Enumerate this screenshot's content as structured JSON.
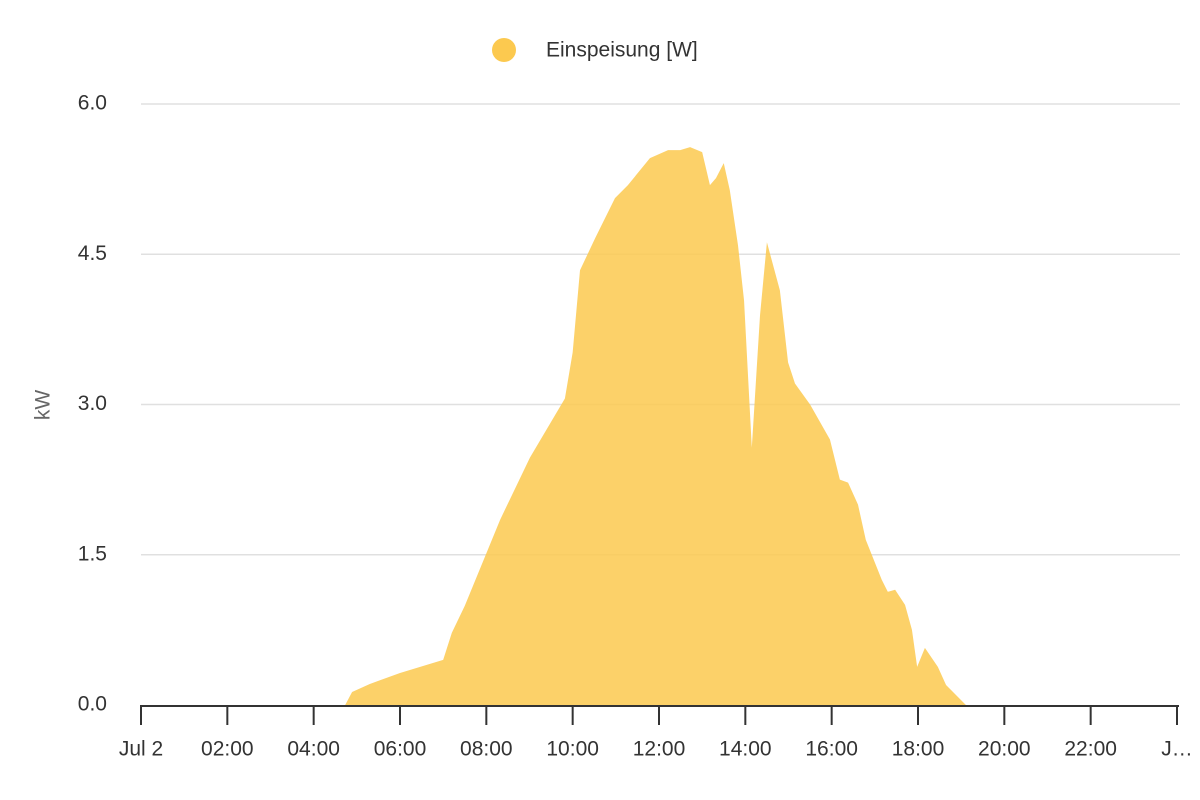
{
  "chart_data": {
    "type": "area",
    "y_label": "kW",
    "series": [
      {
        "name": "Einspeisung [W]",
        "color": "#fcc94f",
        "x": [
          4.73,
          4.89,
          5.3,
          6.0,
          7.0,
          7.2,
          7.5,
          8.32,
          9.01,
          9.82,
          10.0,
          10.17,
          10.52,
          10.98,
          11.28,
          11.79,
          12.21,
          12.49,
          12.72,
          13.0,
          13.18,
          13.32,
          13.5,
          13.64,
          13.83,
          13.97,
          14.15,
          14.34,
          14.5,
          14.8,
          14.99,
          15.15,
          15.5,
          15.96,
          16.19,
          16.38,
          16.61,
          16.79,
          17.16,
          17.3,
          17.47,
          17.7,
          17.86,
          17.98,
          18.16,
          18.46,
          18.65,
          19.11
        ],
        "values": [
          0,
          0.13,
          0.21,
          0.32,
          0.45,
          0.72,
          0.99,
          1.85,
          2.47,
          3.06,
          3.52,
          4.34,
          4.66,
          5.06,
          5.19,
          5.46,
          5.54,
          5.54,
          5.57,
          5.52,
          5.19,
          5.26,
          5.41,
          5.14,
          4.59,
          4.04,
          2.57,
          3.89,
          4.62,
          4.14,
          3.42,
          3.21,
          3.0,
          2.65,
          2.25,
          2.22,
          2.0,
          1.65,
          1.25,
          1.13,
          1.15,
          1.0,
          0.75,
          0.38,
          0.57,
          0.38,
          0.2,
          0
        ]
      }
    ],
    "xlim": [
      0,
      24
    ],
    "xticks": [
      {
        "value": 0,
        "label": "Jul 2"
      },
      {
        "value": 2,
        "label": "02:00"
      },
      {
        "value": 4,
        "label": "04:00"
      },
      {
        "value": 6,
        "label": "06:00"
      },
      {
        "value": 8,
        "label": "08:00"
      },
      {
        "value": 10,
        "label": "10:00"
      },
      {
        "value": 12,
        "label": "12:00"
      },
      {
        "value": 14,
        "label": "14:00"
      },
      {
        "value": 16,
        "label": "16:00"
      },
      {
        "value": 18,
        "label": "18:00"
      },
      {
        "value": 20,
        "label": "20:00"
      },
      {
        "value": 22,
        "label": "22:00"
      },
      {
        "value": 24,
        "label": "J…"
      }
    ],
    "ylim": [
      0,
      6
    ],
    "yticks": [
      {
        "value": 0,
        "label": "0.0"
      },
      1.5,
      {
        "value": 3,
        "label": "3.0"
      },
      4.5,
      {
        "value": 6,
        "label": "6.0"
      }
    ],
    "grid": true,
    "legend": "top"
  }
}
